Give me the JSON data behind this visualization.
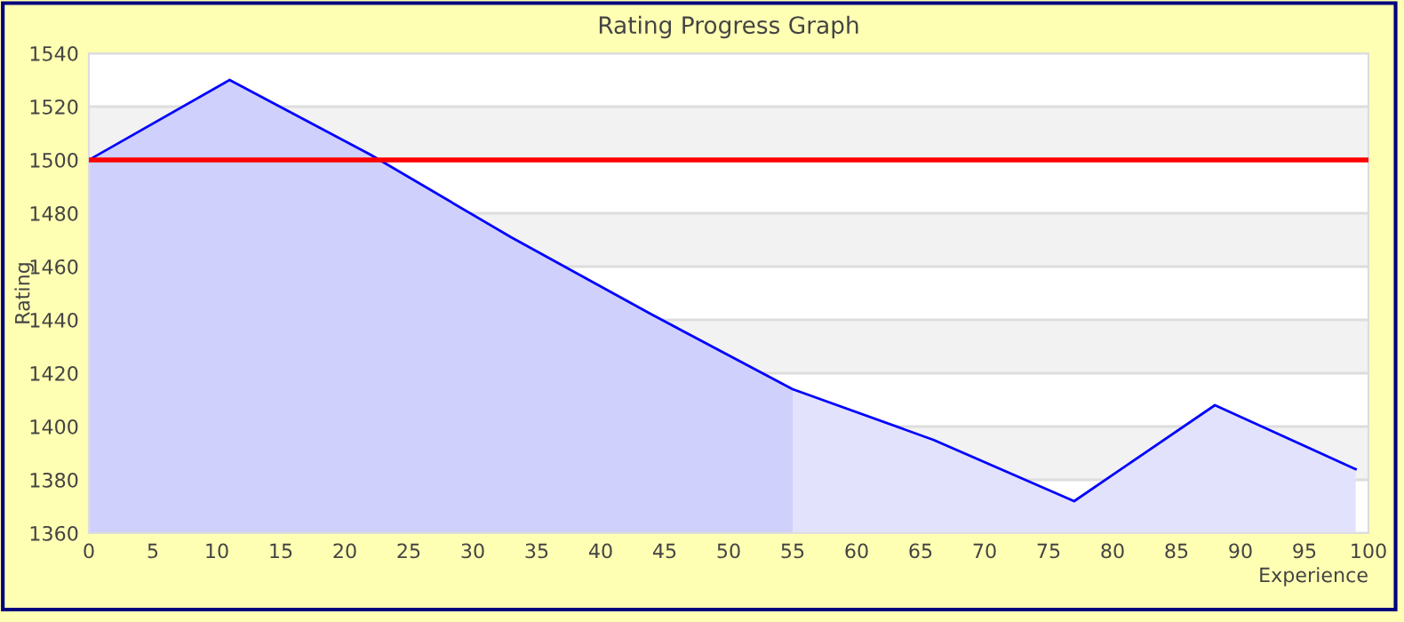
{
  "chart_data": {
    "type": "area",
    "title": "Rating Progress Graph",
    "xlabel": "Experience",
    "ylabel": "Rating",
    "series": [
      {
        "color": "#d0d0fc",
        "x": [
          0,
          11,
          22,
          33,
          44,
          55
        ],
        "values": [
          1500,
          1530,
          1502,
          1471,
          1442,
          1414
        ]
      },
      {
        "color": "#e2e2fc",
        "x": [
          55,
          66,
          77,
          88,
          99
        ],
        "values": [
          1414,
          1395,
          1372,
          1408,
          1384
        ]
      },
      {
        "type": "line",
        "color": "#0000ff",
        "x": [
          0,
          11,
          22,
          33,
          44,
          55,
          66,
          77,
          88,
          99
        ],
        "values": [
          1500,
          1530,
          1502,
          1471,
          1442,
          1414,
          1395,
          1372,
          1408,
          1384
        ]
      }
    ],
    "ref_lines": [
      {
        "axis": "y",
        "value": 1500,
        "color": "#ff0000"
      }
    ],
    "bands": [
      {
        "axis": "y",
        "from": 1380,
        "to": 1400,
        "color": "#f2f2f2"
      },
      {
        "axis": "y",
        "from": 1420,
        "to": 1440,
        "color": "#f2f2f2"
      },
      {
        "axis": "y",
        "from": 1460,
        "to": 1480,
        "color": "#f2f2f2"
      },
      {
        "axis": "y",
        "from": 1500,
        "to": 1520,
        "color": "#f2f2f2"
      }
    ],
    "xlim": [
      0,
      100
    ],
    "xticks": [
      0,
      5,
      10,
      15,
      20,
      25,
      30,
      35,
      40,
      45,
      50,
      55,
      60,
      65,
      70,
      75,
      80,
      85,
      90,
      95,
      100
    ],
    "ylim": [
      1360,
      1540
    ],
    "yticks": [
      1360,
      1380,
      1400,
      1420,
      1440,
      1460,
      1480,
      1500,
      1520,
      1540
    ],
    "grid": "y",
    "legend": false
  }
}
